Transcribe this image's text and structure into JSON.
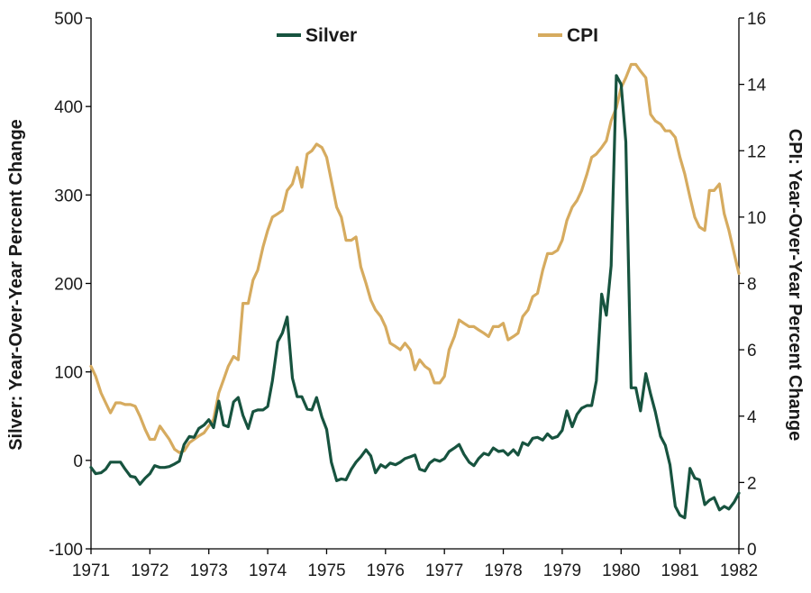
{
  "chart_data": {
    "type": "line",
    "title": "",
    "xlabel": "",
    "x_tick_labels": [
      "1971",
      "1972",
      "1973",
      "1974",
      "1975",
      "1976",
      "1977",
      "1978",
      "1979",
      "1980",
      "1981",
      "1982"
    ],
    "xlim": [
      1971,
      1982
    ],
    "left_axis": {
      "label": "Silver: Year-Over-Year Percent Change",
      "lim": [
        -100,
        500
      ],
      "ticks": [
        -100,
        0,
        100,
        200,
        300,
        400,
        500
      ]
    },
    "right_axis": {
      "label": "CPI: Year-Over-Year Percent Change",
      "lim": [
        0,
        16
      ],
      "ticks": [
        0,
        2,
        4,
        6,
        8,
        10,
        12,
        14,
        16
      ]
    },
    "legend": {
      "placement": "top-center"
    },
    "grid": false,
    "series": [
      {
        "name": "Silver",
        "axis": "left",
        "color": "#17533f",
        "points": [
          [
            1971.0,
            -8
          ],
          [
            1971.08,
            -15
          ],
          [
            1971.17,
            -14
          ],
          [
            1971.25,
            -10
          ],
          [
            1971.33,
            -2
          ],
          [
            1971.42,
            -2
          ],
          [
            1971.5,
            -2
          ],
          [
            1971.58,
            -10
          ],
          [
            1971.67,
            -18
          ],
          [
            1971.75,
            -19
          ],
          [
            1971.83,
            -27
          ],
          [
            1971.92,
            -20
          ],
          [
            1972.0,
            -15
          ],
          [
            1972.08,
            -6
          ],
          [
            1972.17,
            -8
          ],
          [
            1972.25,
            -8
          ],
          [
            1972.33,
            -7
          ],
          [
            1972.42,
            -4
          ],
          [
            1972.5,
            -1
          ],
          [
            1972.58,
            18
          ],
          [
            1972.67,
            27
          ],
          [
            1972.75,
            26
          ],
          [
            1972.83,
            36
          ],
          [
            1972.92,
            40
          ],
          [
            1973.0,
            46
          ],
          [
            1973.08,
            37
          ],
          [
            1973.17,
            67
          ],
          [
            1973.25,
            40
          ],
          [
            1973.33,
            38
          ],
          [
            1973.42,
            66
          ],
          [
            1973.5,
            71
          ],
          [
            1973.58,
            51
          ],
          [
            1973.67,
            36
          ],
          [
            1973.75,
            55
          ],
          [
            1973.83,
            57
          ],
          [
            1973.92,
            57
          ],
          [
            1974.0,
            61
          ],
          [
            1974.08,
            90
          ],
          [
            1974.17,
            134
          ],
          [
            1974.25,
            144
          ],
          [
            1974.33,
            162
          ],
          [
            1974.42,
            93
          ],
          [
            1974.5,
            72
          ],
          [
            1974.58,
            72
          ],
          [
            1974.67,
            58
          ],
          [
            1974.75,
            57
          ],
          [
            1974.83,
            71
          ],
          [
            1974.92,
            49
          ],
          [
            1975.0,
            35
          ],
          [
            1975.08,
            -2
          ],
          [
            1975.17,
            -23
          ],
          [
            1975.25,
            -21
          ],
          [
            1975.33,
            -22
          ],
          [
            1975.42,
            -10
          ],
          [
            1975.5,
            -2
          ],
          [
            1975.58,
            4
          ],
          [
            1975.67,
            12
          ],
          [
            1975.75,
            5
          ],
          [
            1975.83,
            -14
          ],
          [
            1975.92,
            -5
          ],
          [
            1976.0,
            -8
          ],
          [
            1976.08,
            -3
          ],
          [
            1976.17,
            -5
          ],
          [
            1976.25,
            -2
          ],
          [
            1976.33,
            2
          ],
          [
            1976.42,
            4
          ],
          [
            1976.5,
            6
          ],
          [
            1976.58,
            -10
          ],
          [
            1976.67,
            -12
          ],
          [
            1976.75,
            -3
          ],
          [
            1976.83,
            1
          ],
          [
            1976.92,
            -1
          ],
          [
            1977.0,
            2
          ],
          [
            1977.08,
            10
          ],
          [
            1977.17,
            14
          ],
          [
            1977.25,
            18
          ],
          [
            1977.33,
            7
          ],
          [
            1977.42,
            -2
          ],
          [
            1977.5,
            -6
          ],
          [
            1977.58,
            2
          ],
          [
            1977.67,
            8
          ],
          [
            1977.75,
            6
          ],
          [
            1977.83,
            14
          ],
          [
            1977.92,
            10
          ],
          [
            1978.0,
            11
          ],
          [
            1978.08,
            6
          ],
          [
            1978.17,
            12
          ],
          [
            1978.25,
            6
          ],
          [
            1978.33,
            20
          ],
          [
            1978.42,
            17
          ],
          [
            1978.5,
            25
          ],
          [
            1978.58,
            26
          ],
          [
            1978.67,
            23
          ],
          [
            1978.75,
            30
          ],
          [
            1978.83,
            25
          ],
          [
            1978.92,
            27
          ],
          [
            1979.0,
            34
          ],
          [
            1979.08,
            56
          ],
          [
            1979.17,
            38
          ],
          [
            1979.25,
            52
          ],
          [
            1979.33,
            59
          ],
          [
            1979.42,
            62
          ],
          [
            1979.5,
            62
          ],
          [
            1979.58,
            90
          ],
          [
            1979.67,
            188
          ],
          [
            1979.75,
            164
          ],
          [
            1979.83,
            220
          ],
          [
            1979.92,
            435
          ],
          [
            1980.0,
            425
          ],
          [
            1980.08,
            360
          ],
          [
            1980.17,
            82
          ],
          [
            1980.25,
            82
          ],
          [
            1980.33,
            56
          ],
          [
            1980.42,
            98
          ],
          [
            1980.5,
            75
          ],
          [
            1980.58,
            55
          ],
          [
            1980.67,
            27
          ],
          [
            1980.75,
            17
          ],
          [
            1980.83,
            -5
          ],
          [
            1980.92,
            -52
          ],
          [
            1981.0,
            -62
          ],
          [
            1981.08,
            -65
          ],
          [
            1981.17,
            -9
          ],
          [
            1981.25,
            -20
          ],
          [
            1981.33,
            -22
          ],
          [
            1981.42,
            -50
          ],
          [
            1981.5,
            -45
          ],
          [
            1981.58,
            -42
          ],
          [
            1981.67,
            -56
          ],
          [
            1981.75,
            -52
          ],
          [
            1981.83,
            -55
          ],
          [
            1981.92,
            -47
          ],
          [
            1982.0,
            -37
          ]
        ]
      },
      {
        "name": "CPI",
        "axis": "right",
        "color": "#d6ab5f",
        "points": [
          [
            1971.0,
            5.5
          ],
          [
            1971.08,
            5.2
          ],
          [
            1971.17,
            4.7
          ],
          [
            1971.25,
            4.4
          ],
          [
            1971.33,
            4.1
          ],
          [
            1971.42,
            4.4
          ],
          [
            1971.5,
            4.4
          ],
          [
            1971.58,
            4.35
          ],
          [
            1971.67,
            4.35
          ],
          [
            1971.75,
            4.3
          ],
          [
            1971.83,
            4.0
          ],
          [
            1971.92,
            3.6
          ],
          [
            1972.0,
            3.3
          ],
          [
            1972.08,
            3.3
          ],
          [
            1972.17,
            3.7
          ],
          [
            1972.25,
            3.5
          ],
          [
            1972.33,
            3.3
          ],
          [
            1972.42,
            3.0
          ],
          [
            1972.5,
            2.9
          ],
          [
            1972.58,
            2.95
          ],
          [
            1972.67,
            3.2
          ],
          [
            1972.75,
            3.3
          ],
          [
            1972.83,
            3.4
          ],
          [
            1972.92,
            3.5
          ],
          [
            1973.0,
            3.7
          ],
          [
            1973.08,
            3.9
          ],
          [
            1973.17,
            4.7
          ],
          [
            1973.25,
            5.1
          ],
          [
            1973.33,
            5.5
          ],
          [
            1973.42,
            5.8
          ],
          [
            1973.5,
            5.7
          ],
          [
            1973.58,
            7.4
          ],
          [
            1973.67,
            7.4
          ],
          [
            1973.75,
            8.1
          ],
          [
            1973.83,
            8.4
          ],
          [
            1973.92,
            9.1
          ],
          [
            1974.0,
            9.6
          ],
          [
            1974.08,
            10.0
          ],
          [
            1974.17,
            10.1
          ],
          [
            1974.25,
            10.2
          ],
          [
            1974.33,
            10.8
          ],
          [
            1974.42,
            11.0
          ],
          [
            1974.5,
            11.5
          ],
          [
            1974.58,
            10.9
          ],
          [
            1974.67,
            11.9
          ],
          [
            1974.75,
            12.0
          ],
          [
            1974.83,
            12.2
          ],
          [
            1974.92,
            12.1
          ],
          [
            1975.0,
            11.8
          ],
          [
            1975.08,
            11.1
          ],
          [
            1975.17,
            10.3
          ],
          [
            1975.25,
            10.0
          ],
          [
            1975.33,
            9.3
          ],
          [
            1975.42,
            9.3
          ],
          [
            1975.5,
            9.4
          ],
          [
            1975.58,
            8.5
          ],
          [
            1975.67,
            8.0
          ],
          [
            1975.75,
            7.5
          ],
          [
            1975.83,
            7.2
          ],
          [
            1975.92,
            7.0
          ],
          [
            1976.0,
            6.7
          ],
          [
            1976.08,
            6.2
          ],
          [
            1976.17,
            6.1
          ],
          [
            1976.25,
            6.0
          ],
          [
            1976.33,
            6.2
          ],
          [
            1976.42,
            6.0
          ],
          [
            1976.5,
            5.4
          ],
          [
            1976.58,
            5.7
          ],
          [
            1976.67,
            5.5
          ],
          [
            1976.75,
            5.4
          ],
          [
            1976.83,
            5.0
          ],
          [
            1976.92,
            5.0
          ],
          [
            1977.0,
            5.2
          ],
          [
            1977.08,
            6.0
          ],
          [
            1977.17,
            6.4
          ],
          [
            1977.25,
            6.9
          ],
          [
            1977.33,
            6.8
          ],
          [
            1977.42,
            6.7
          ],
          [
            1977.5,
            6.7
          ],
          [
            1977.58,
            6.6
          ],
          [
            1977.67,
            6.5
          ],
          [
            1977.75,
            6.4
          ],
          [
            1977.83,
            6.7
          ],
          [
            1977.92,
            6.7
          ],
          [
            1978.0,
            6.8
          ],
          [
            1978.08,
            6.3
          ],
          [
            1978.17,
            6.4
          ],
          [
            1978.25,
            6.5
          ],
          [
            1978.33,
            7.0
          ],
          [
            1978.42,
            7.2
          ],
          [
            1978.5,
            7.6
          ],
          [
            1978.58,
            7.7
          ],
          [
            1978.67,
            8.4
          ],
          [
            1978.75,
            8.9
          ],
          [
            1978.83,
            8.9
          ],
          [
            1978.92,
            9.0
          ],
          [
            1979.0,
            9.3
          ],
          [
            1979.08,
            9.9
          ],
          [
            1979.17,
            10.3
          ],
          [
            1979.25,
            10.5
          ],
          [
            1979.33,
            10.8
          ],
          [
            1979.42,
            11.3
          ],
          [
            1979.5,
            11.8
          ],
          [
            1979.58,
            11.9
          ],
          [
            1979.67,
            12.1
          ],
          [
            1979.75,
            12.3
          ],
          [
            1979.83,
            12.9
          ],
          [
            1979.92,
            13.3
          ],
          [
            1980.0,
            13.9
          ],
          [
            1980.08,
            14.2
          ],
          [
            1980.17,
            14.6
          ],
          [
            1980.25,
            14.6
          ],
          [
            1980.33,
            14.4
          ],
          [
            1980.42,
            14.2
          ],
          [
            1980.5,
            13.1
          ],
          [
            1980.58,
            12.9
          ],
          [
            1980.67,
            12.8
          ],
          [
            1980.75,
            12.6
          ],
          [
            1980.83,
            12.6
          ],
          [
            1980.92,
            12.4
          ],
          [
            1981.0,
            11.8
          ],
          [
            1981.08,
            11.3
          ],
          [
            1981.17,
            10.6
          ],
          [
            1981.25,
            10.0
          ],
          [
            1981.33,
            9.7
          ],
          [
            1981.42,
            9.6
          ],
          [
            1981.5,
            10.8
          ],
          [
            1981.58,
            10.8
          ],
          [
            1981.67,
            11.0
          ],
          [
            1981.75,
            10.1
          ],
          [
            1981.83,
            9.6
          ],
          [
            1981.92,
            8.9
          ],
          [
            1982.0,
            8.3
          ]
        ]
      }
    ]
  }
}
